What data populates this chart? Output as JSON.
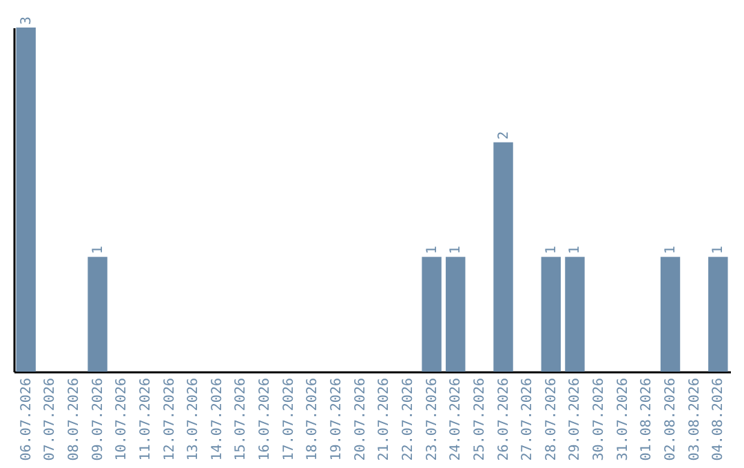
{
  "chart_data": {
    "type": "bar",
    "categories": [
      "06.07.2026",
      "07.07.2026",
      "08.07.2026",
      "09.07.2026",
      "10.07.2026",
      "11.07.2026",
      "12.07.2026",
      "13.07.2026",
      "14.07.2026",
      "15.07.2026",
      "16.07.2026",
      "17.07.2026",
      "18.07.2026",
      "19.07.2026",
      "20.07.2026",
      "21.07.2026",
      "22.07.2026",
      "23.07.2026",
      "24.07.2026",
      "25.07.2026",
      "26.07.2026",
      "27.07.2026",
      "28.07.2026",
      "29.07.2026",
      "30.07.2026",
      "31.07.2026",
      "01.08.2026",
      "02.08.2026",
      "03.08.2026",
      "04.08.2026"
    ],
    "values": [
      3,
      0,
      0,
      1,
      0,
      0,
      0,
      0,
      0,
      0,
      0,
      0,
      0,
      0,
      0,
      0,
      0,
      1,
      1,
      0,
      2,
      0,
      1,
      1,
      0,
      0,
      0,
      1,
      0,
      1
    ],
    "value_labels": [
      "3",
      null,
      null,
      "1",
      null,
      null,
      null,
      null,
      null,
      null,
      null,
      null,
      null,
      null,
      null,
      null,
      null,
      "1",
      "1",
      null,
      "2",
      null,
      "1",
      "1",
      null,
      null,
      null,
      "1",
      null,
      "1"
    ],
    "color": "#6d8dab",
    "grid": false,
    "legend": false
  }
}
